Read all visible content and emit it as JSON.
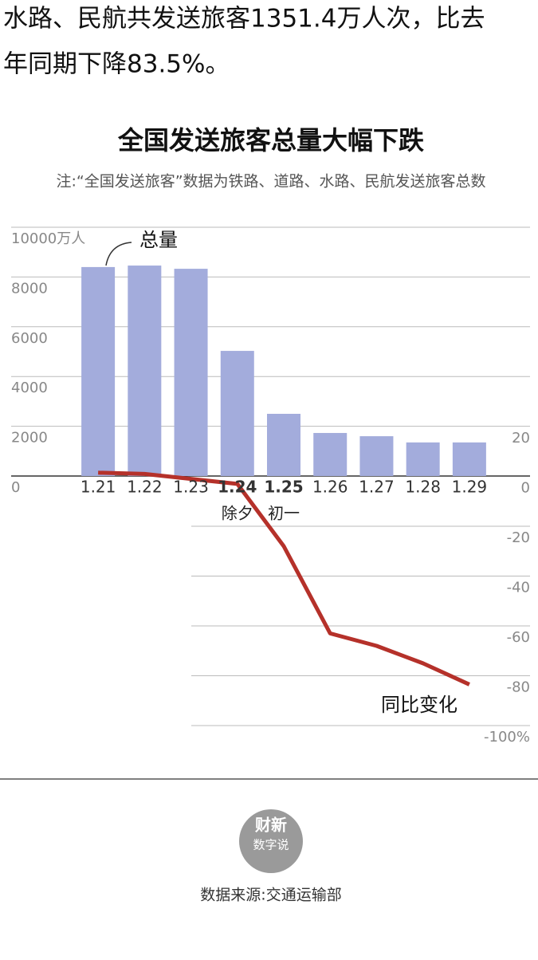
{
  "article_text": [
    "水路、民航共发送旅客1351.4万人次，比去",
    "年同期下降83.5%。"
  ],
  "chart_data": {
    "type": "bar_line",
    "title": "全国发送旅客总量大幅下跌",
    "subtitle": "注:“全国发送旅客”数据为铁路、道路、水路、民航发送旅客总数",
    "categories": [
      "1.21",
      "1.22",
      "1.23",
      "1.24",
      "1.25",
      "1.26",
      "1.27",
      "1.28",
      "1.29"
    ],
    "category_notes": [
      null,
      null,
      null,
      "除夕",
      "初一",
      null,
      null,
      null,
      null
    ],
    "series": [
      {
        "name": "总量",
        "color": "#a3acdc",
        "type": "bar",
        "values": [
          8400,
          8460,
          8330,
          5030,
          2500,
          1730,
          1600,
          1350,
          1350
        ]
      },
      {
        "name": "同比变化",
        "color": "#b5312a",
        "type": "line",
        "axis": "y2",
        "values": [
          1.5,
          1,
          -1,
          -3,
          -28,
          -63,
          -68,
          -75,
          -83.5
        ]
      }
    ],
    "ylim": [
      0,
      10000
    ],
    "yticks": [
      0,
      2000,
      4000,
      6000,
      8000,
      {
        "value": 10000,
        "label": "10000万人"
      }
    ],
    "y2lim": [
      -100,
      20
    ],
    "y2ticks": [
      20,
      0,
      -20,
      -40,
      -60,
      -80,
      {
        "value": -100,
        "label": "-100%"
      }
    ],
    "grid": true
  },
  "footer": {
    "logo_top": "财新",
    "logo_bottom": "数字说",
    "source": "数据来源:交通运输部"
  }
}
